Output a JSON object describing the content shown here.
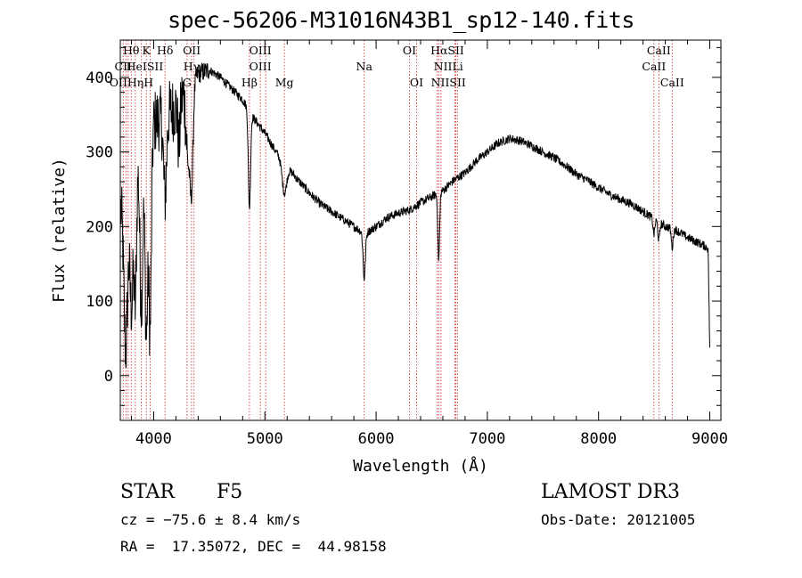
{
  "chart_data": {
    "type": "line",
    "title": "spec-56206-M31016N43B1_sp12-140.fits",
    "xlabel": "Wavelength (Å)",
    "ylabel": "Flux (relative)",
    "xlim": [
      3700,
      9100
    ],
    "ylim": [
      -60,
      450
    ],
    "x_ticks": [
      4000,
      5000,
      6000,
      7000,
      8000,
      9000
    ],
    "y_ticks": [
      0,
      100,
      200,
      300,
      400
    ],
    "continuum": [
      [
        3700,
        230
      ],
      [
        3800,
        300
      ],
      [
        3900,
        320
      ],
      [
        4000,
        340
      ],
      [
        4100,
        350
      ],
      [
        4200,
        360
      ],
      [
        4300,
        385
      ],
      [
        4400,
        405
      ],
      [
        4500,
        410
      ],
      [
        4600,
        400
      ],
      [
        4700,
        385
      ],
      [
        4800,
        370
      ],
      [
        4900,
        345
      ],
      [
        5000,
        325
      ],
      [
        5100,
        300
      ],
      [
        5200,
        280
      ],
      [
        5300,
        262
      ],
      [
        5400,
        245
      ],
      [
        5500,
        230
      ],
      [
        5600,
        220
      ],
      [
        5700,
        210
      ],
      [
        5800,
        200
      ],
      [
        5900,
        190
      ],
      [
        6000,
        200
      ],
      [
        6100,
        212
      ],
      [
        6200,
        218
      ],
      [
        6300,
        222
      ],
      [
        6400,
        232
      ],
      [
        6500,
        240
      ],
      [
        6600,
        248
      ],
      [
        6700,
        262
      ],
      [
        6800,
        272
      ],
      [
        6900,
        288
      ],
      [
        7000,
        300
      ],
      [
        7100,
        312
      ],
      [
        7200,
        318
      ],
      [
        7300,
        315
      ],
      [
        7400,
        308
      ],
      [
        7500,
        300
      ],
      [
        7600,
        292
      ],
      [
        7700,
        282
      ],
      [
        7800,
        270
      ],
      [
        7900,
        262
      ],
      [
        8000,
        252
      ],
      [
        8100,
        243
      ],
      [
        8200,
        236
      ],
      [
        8300,
        230
      ],
      [
        8400,
        220
      ],
      [
        8500,
        210
      ],
      [
        8600,
        200
      ],
      [
        8700,
        195
      ],
      [
        8800,
        185
      ],
      [
        8900,
        178
      ],
      [
        9000,
        170
      ]
    ],
    "absorption_features": [
      [
        3750,
        230,
        18
      ],
      [
        3800,
        200,
        15
      ],
      [
        3835,
        200,
        12
      ],
      [
        3889,
        220,
        14
      ],
      [
        3934,
        270,
        12
      ],
      [
        3968,
        270,
        12
      ],
      [
        4102,
        110,
        14
      ],
      [
        4227,
        60,
        10
      ],
      [
        4308,
        90,
        16
      ],
      [
        4340,
        140,
        14
      ],
      [
        4861,
        130,
        10
      ],
      [
        5175,
        40,
        20
      ],
      [
        5893,
        60,
        10
      ],
      [
        6563,
        90,
        8
      ],
      [
        8498,
        20,
        8
      ],
      [
        8542,
        25,
        8
      ],
      [
        8662,
        25,
        8
      ]
    ],
    "line_markers": [
      {
        "label": "Hθ",
        "wl": 3798,
        "row": 0
      },
      {
        "label": "K",
        "wl": 3934,
        "row": 0
      },
      {
        "label": "Hδ",
        "wl": 4102,
        "row": 0
      },
      {
        "label": "OII",
        "wl": 4342,
        "row": 0
      },
      {
        "label": "OIII",
        "wl": 4959,
        "row": 0
      },
      {
        "label": "OI",
        "wl": 6300,
        "row": 0
      },
      {
        "label": "HαSII",
        "wl": 6640,
        "row": 0
      },
      {
        "label": "CaII",
        "wl": 8542,
        "row": 0
      },
      {
        "label": "CII",
        "wl": 3726,
        "row": 1
      },
      {
        "label": "HeISII",
        "wl": 3920,
        "row": 1
      },
      {
        "label": "Hγ",
        "wl": 4340,
        "row": 1
      },
      {
        "label": "OIII",
        "wl": 4959,
        "row": 1
      },
      {
        "label": "Na",
        "wl": 5893,
        "row": 1
      },
      {
        "label": "NIILi",
        "wl": 6650,
        "row": 1
      },
      {
        "label": "CaII",
        "wl": 8498,
        "row": 1
      },
      {
        "label": "OIIHηH",
        "wl": 3800,
        "row": 2
      },
      {
        "label": "G",
        "wl": 4300,
        "row": 2
      },
      {
        "label": "Hβ",
        "wl": 4861,
        "row": 2
      },
      {
        "label": "Mg",
        "wl": 5175,
        "row": 2
      },
      {
        "label": "OI",
        "wl": 6364,
        "row": 2
      },
      {
        "label": "NIISII",
        "wl": 6650,
        "row": 2
      },
      {
        "label": "CaII",
        "wl": 8662,
        "row": 2
      }
    ],
    "marker_lines_wl": [
      3726,
      3750,
      3771,
      3798,
      3835,
      3889,
      3934,
      3968,
      4102,
      4300,
      4340,
      4363,
      4861,
      4959,
      5007,
      5175,
      5893,
      6300,
      6364,
      6548,
      6563,
      6584,
      6707,
      6717,
      6731,
      8498,
      8542,
      8662
    ]
  },
  "info": {
    "class_label": "STAR",
    "subclass": "F5",
    "survey": "LAMOST DR3",
    "cz": "cz = −75.6 ± 8.4 km/s",
    "obs_date": "Obs-Date: 20121005",
    "radec": "RA =  17.35072, DEC =  44.98158"
  }
}
